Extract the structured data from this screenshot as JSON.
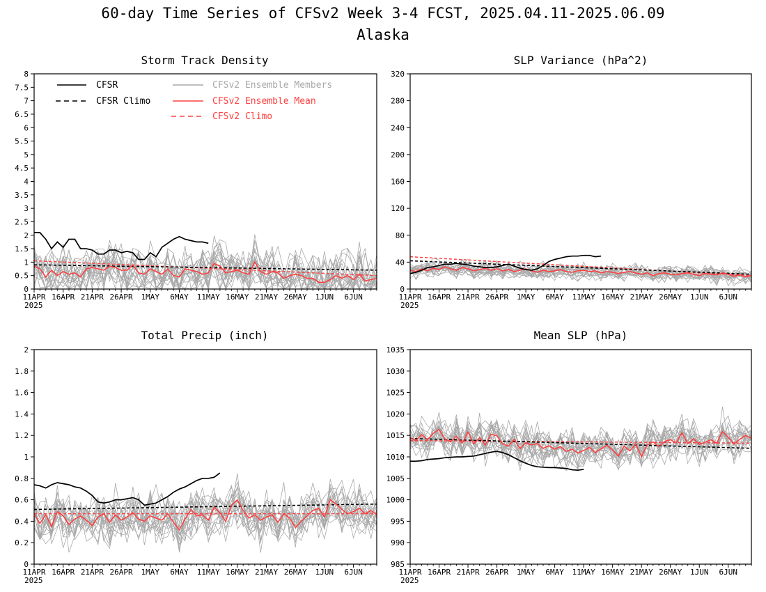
{
  "figure": {
    "title_line1": "60-day Time Series of CFSv2 Week 3-4 FCST, 2025.04.11-2025.06.09",
    "title_line2": "Alaska"
  },
  "legend": {
    "cfsr": "CFSR",
    "cfsr_climo": "CFSR Climo",
    "members": "CFSv2 Ensemble Members",
    "ens_mean": "CFSv2 Ensemble Mean",
    "cfsv2_climo": "CFSv2 Climo",
    "colors": {
      "cfsr": "#000000",
      "members": "#a8a8a8",
      "ens_mean": "#ff4040",
      "cfsv2_climo": "#ff4040"
    }
  },
  "x_axis": {
    "tick_labels": [
      "11APR",
      "16APR",
      "21APR",
      "26APR",
      "1MAY",
      "6MAY",
      "11MAY",
      "16MAY",
      "21MAY",
      "26MAY",
      "1JUN",
      "6JUN"
    ],
    "year_label": "2025",
    "start_date": "2025-04-11",
    "end_date": "2025-06-09"
  },
  "chart_data": [
    {
      "type": "line",
      "title": "Storm Track Density",
      "ylim": [
        0,
        8
      ],
      "ytick_labels": [
        "0",
        "0.5",
        "1",
        "1.5",
        "2",
        "2.5",
        "3",
        "3.5",
        "4",
        "4.5",
        "5",
        "5.5",
        "6",
        "6.5",
        "7",
        "7.5",
        "8"
      ],
      "member_count": 20,
      "member_spread": 0.45,
      "cfsr": [
        2.1,
        2.1,
        1.85,
        1.5,
        1.75,
        1.55,
        1.85,
        1.85,
        1.5,
        1.5,
        1.45,
        1.3,
        1.3,
        1.45,
        1.45,
        1.35,
        1.4,
        1.35,
        1.1,
        1.1,
        1.35,
        1.2,
        1.55,
        1.7,
        1.85,
        1.95,
        1.85,
        1.8,
        1.75,
        1.75,
        1.7
      ],
      "cfsr_climo": [
        0.9,
        0.7
      ],
      "cfsv2_climo": [
        1.05,
        0.5
      ],
      "ens_mean": [
        0.85,
        0.75,
        0.45,
        0.7,
        0.5,
        0.65,
        0.55,
        0.6,
        0.45,
        0.75,
        0.8,
        0.75,
        0.7,
        0.85,
        0.8,
        0.7,
        0.7,
        0.9,
        0.6,
        0.55,
        0.75,
        0.65,
        0.55,
        0.75,
        0.5,
        0.45,
        0.75,
        0.7,
        0.65,
        0.55,
        0.6,
        0.95,
        0.85,
        0.6,
        0.65,
        0.7,
        0.6,
        0.55,
        1.0,
        0.65,
        0.55,
        0.65,
        0.6,
        0.4,
        0.5,
        0.55,
        0.5,
        0.4,
        0.4,
        0.25,
        0.25,
        0.35,
        0.5,
        0.4,
        0.5,
        0.35,
        0.55,
        0.3,
        0.35,
        0.4
      ]
    },
    {
      "type": "line",
      "title": "SLP Variance (hPa^2)",
      "ylim": [
        0,
        320
      ],
      "ytick_labels": [
        "0",
        "40",
        "80",
        "120",
        "160",
        "200",
        "240",
        "280",
        "320"
      ],
      "member_count": 20,
      "member_spread": 6,
      "cfsr": [
        23,
        25,
        28,
        32,
        33,
        35,
        37,
        37,
        38,
        37,
        36,
        34,
        33,
        32,
        32,
        33,
        35,
        37,
        34,
        31,
        29,
        28,
        30,
        35,
        41,
        44,
        46,
        48,
        49,
        49,
        50,
        50,
        48,
        49
      ],
      "cfsr_climo": [
        42,
        22
      ],
      "cfsv2_climo": [
        48,
        20
      ],
      "ens_mean": [
        28,
        26,
        30,
        27,
        31,
        29,
        33,
        30,
        28,
        32,
        30,
        27,
        29,
        31,
        28,
        30,
        27,
        29,
        26,
        28,
        30,
        27,
        25,
        28,
        26,
        27,
        29,
        26,
        25,
        27,
        28,
        26,
        27,
        24,
        26,
        25,
        23,
        25,
        26,
        24,
        22,
        24,
        20,
        23,
        24,
        22,
        21,
        23,
        24,
        22,
        20,
        23,
        22,
        21,
        24,
        22,
        19,
        21,
        18,
        20
      ]
    },
    {
      "type": "line",
      "title": "Total Precip (inch)",
      "ylim": [
        0,
        2
      ],
      "ytick_labels": [
        "0",
        "0.2",
        "0.4",
        "0.6",
        "0.8",
        "1",
        "1.2",
        "1.4",
        "1.6",
        "1.8",
        "2"
      ],
      "member_count": 20,
      "member_spread": 0.11,
      "cfsr": [
        0.74,
        0.73,
        0.71,
        0.74,
        0.76,
        0.75,
        0.74,
        0.72,
        0.71,
        0.68,
        0.64,
        0.58,
        0.57,
        0.58,
        0.6,
        0.6,
        0.61,
        0.62,
        0.6,
        0.55,
        0.56,
        0.57,
        0.6,
        0.63,
        0.67,
        0.7,
        0.72,
        0.75,
        0.78,
        0.8,
        0.8,
        0.81,
        0.85
      ],
      "cfsr_climo": [
        0.51,
        0.56
      ],
      "cfsv2_climo": [
        0.47,
        0.47
      ],
      "ens_mean": [
        0.47,
        0.38,
        0.46,
        0.35,
        0.49,
        0.45,
        0.37,
        0.42,
        0.45,
        0.41,
        0.36,
        0.44,
        0.47,
        0.39,
        0.46,
        0.41,
        0.44,
        0.48,
        0.42,
        0.4,
        0.45,
        0.43,
        0.41,
        0.47,
        0.39,
        0.32,
        0.42,
        0.51,
        0.45,
        0.46,
        0.41,
        0.53,
        0.48,
        0.4,
        0.55,
        0.6,
        0.5,
        0.43,
        0.46,
        0.41,
        0.44,
        0.46,
        0.39,
        0.47,
        0.43,
        0.34,
        0.4,
        0.45,
        0.5,
        0.52,
        0.44,
        0.6,
        0.56,
        0.51,
        0.47,
        0.49,
        0.52,
        0.47,
        0.5,
        0.46
      ]
    },
    {
      "type": "line",
      "title": "Mean SLP (hPa)",
      "ylim": [
        985,
        1035
      ],
      "ytick_labels": [
        "985",
        "990",
        "995",
        "1000",
        "1005",
        "1010",
        "1015",
        "1020",
        "1025",
        "1030",
        "1035"
      ],
      "member_count": 20,
      "member_spread": 2.2,
      "cfsr": [
        1009.0,
        1009.0,
        1009.1,
        1009.4,
        1009.5,
        1009.6,
        1009.8,
        1009.9,
        1010.0,
        1010.0,
        1010.1,
        1010.2,
        1010.5,
        1010.8,
        1011.1,
        1011.3,
        1011.0,
        1010.5,
        1009.8,
        1009.1,
        1008.5,
        1008.0,
        1007.7,
        1007.6,
        1007.5,
        1007.5,
        1007.4,
        1007.3,
        1007.0,
        1006.9,
        1007.1
      ],
      "cfsr_climo": [
        1014.3,
        1012.0
      ],
      "cfsv2_climo": [
        1013.8,
        1013.2
      ],
      "ens_mean": [
        1014.5,
        1013.8,
        1015.2,
        1014.0,
        1015.5,
        1016.4,
        1014.2,
        1013.5,
        1014.8,
        1013.2,
        1015.8,
        1013.0,
        1014.5,
        1012.8,
        1015.3,
        1014.9,
        1013.0,
        1012.5,
        1014.1,
        1011.9,
        1013.3,
        1012.8,
        1013.1,
        1012.0,
        1012.6,
        1011.8,
        1012.4,
        1011.3,
        1011.8,
        1010.9,
        1011.5,
        1012.2,
        1011.0,
        1011.9,
        1012.7,
        1011.6,
        1010.2,
        1012.5,
        1011.4,
        1013.0,
        1010.1,
        1012.8,
        1013.5,
        1012.4,
        1013.6,
        1014.0,
        1013.3,
        1015.6,
        1013.1,
        1014.2,
        1012.9,
        1013.4,
        1014.0,
        1013.2,
        1015.9,
        1014.6,
        1013.0,
        1014.1,
        1015.0,
        1014.3
      ]
    }
  ]
}
